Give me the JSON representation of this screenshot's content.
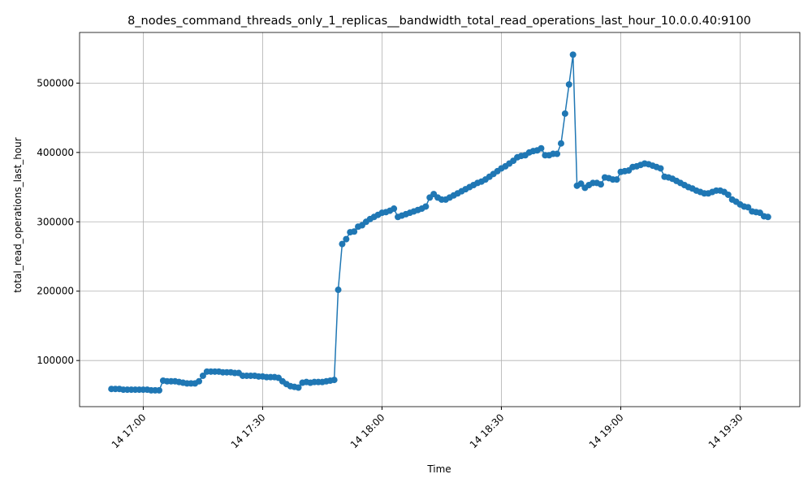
{
  "chart_data": {
    "type": "line",
    "title": "8_nodes_command_threads_only_1_replicas__bandwidth_total_read_operations_last_hour_10.0.0.40:9100",
    "x_label": "Time",
    "y_label": "total_read_operations_last_hour",
    "x": [
      "14 16:52",
      "14 16:53",
      "14 16:54",
      "14 16:55",
      "14 16:56",
      "14 16:57",
      "14 16:58",
      "14 16:59",
      "14 17:00",
      "14 17:01",
      "14 17:02",
      "14 17:03",
      "14 17:04",
      "14 17:05",
      "14 17:06",
      "14 17:07",
      "14 17:08",
      "14 17:09",
      "14 17:10",
      "14 17:11",
      "14 17:12",
      "14 17:13",
      "14 17:14",
      "14 17:15",
      "14 17:16",
      "14 17:17",
      "14 17:18",
      "14 17:19",
      "14 17:20",
      "14 17:21",
      "14 17:22",
      "14 17:23",
      "14 17:24",
      "14 17:25",
      "14 17:26",
      "14 17:27",
      "14 17:28",
      "14 17:29",
      "14 17:30",
      "14 17:31",
      "14 17:32",
      "14 17:33",
      "14 17:34",
      "14 17:35",
      "14 17:36",
      "14 17:37",
      "14 17:38",
      "14 17:39",
      "14 17:40",
      "14 17:41",
      "14 17:42",
      "14 17:43",
      "14 17:44",
      "14 17:45",
      "14 17:46",
      "14 17:47",
      "14 17:48",
      "14 17:49",
      "14 17:50",
      "14 17:51",
      "14 17:52",
      "14 17:53",
      "14 17:54",
      "14 17:55",
      "14 17:56",
      "14 17:57",
      "14 17:58",
      "14 17:59",
      "14 18:00",
      "14 18:01",
      "14 18:02",
      "14 18:03",
      "14 18:04",
      "14 18:05",
      "14 18:06",
      "14 18:07",
      "14 18:08",
      "14 18:09",
      "14 18:10",
      "14 18:11",
      "14 18:12",
      "14 18:13",
      "14 18:14",
      "14 18:15",
      "14 18:16",
      "14 18:17",
      "14 18:18",
      "14 18:19",
      "14 18:20",
      "14 18:21",
      "14 18:22",
      "14 18:23",
      "14 18:24",
      "14 18:25",
      "14 18:26",
      "14 18:27",
      "14 18:28",
      "14 18:29",
      "14 18:30",
      "14 18:31",
      "14 18:32",
      "14 18:33",
      "14 18:34",
      "14 18:35",
      "14 18:36",
      "14 18:37",
      "14 18:38",
      "14 18:39",
      "14 18:40",
      "14 18:41",
      "14 18:42",
      "14 18:43",
      "14 18:44",
      "14 18:45",
      "14 18:46",
      "14 18:47",
      "14 18:48",
      "14 18:49",
      "14 18:50",
      "14 18:51",
      "14 18:52",
      "14 18:53",
      "14 18:54",
      "14 18:55",
      "14 18:56",
      "14 18:57",
      "14 18:58",
      "14 18:59",
      "14 19:00",
      "14 19:01",
      "14 19:02",
      "14 19:03",
      "14 19:04",
      "14 19:05",
      "14 19:06",
      "14 19:07",
      "14 19:08",
      "14 19:09",
      "14 19:10",
      "14 19:11",
      "14 19:12",
      "14 19:13",
      "14 19:14",
      "14 19:15",
      "14 19:16",
      "14 19:17",
      "14 19:18",
      "14 19:19",
      "14 19:20",
      "14 19:21",
      "14 19:22",
      "14 19:23",
      "14 19:24",
      "14 19:25",
      "14 19:26",
      "14 19:27",
      "14 19:28",
      "14 19:29",
      "14 19:30",
      "14 19:31",
      "14 19:32",
      "14 19:33",
      "14 19:34",
      "14 19:35",
      "14 19:36",
      "14 19:37"
    ],
    "series": [
      {
        "color": "#1f77b4",
        "values": [
          59000,
          59000,
          59000,
          58000,
          58000,
          58000,
          58000,
          58000,
          58000,
          58000,
          57000,
          57000,
          57000,
          71000,
          70000,
          70000,
          70000,
          69000,
          68000,
          67000,
          67000,
          67000,
          70000,
          78000,
          84000,
          84000,
          84000,
          84000,
          83000,
          83000,
          83000,
          82000,
          82000,
          78000,
          78000,
          78000,
          78000,
          77000,
          77000,
          76000,
          76000,
          76000,
          75000,
          70000,
          66000,
          63000,
          62000,
          61000,
          68000,
          69000,
          68000,
          69000,
          69000,
          69000,
          70000,
          71000,
          72000,
          202000,
          268000,
          275000,
          285000,
          286000,
          293000,
          295000,
          300000,
          304000,
          307000,
          310000,
          313000,
          314000,
          316000,
          319000,
          307000,
          309000,
          311000,
          313000,
          315000,
          317000,
          319000,
          322000,
          335000,
          340000,
          335000,
          332000,
          332000,
          335000,
          338000,
          341000,
          344000,
          347000,
          350000,
          353000,
          356000,
          358000,
          361000,
          365000,
          369000,
          373000,
          377000,
          380000,
          384000,
          388000,
          393000,
          395000,
          396000,
          400000,
          402000,
          403000,
          406000,
          396000,
          396000,
          398000,
          398000,
          413000,
          456000,
          498000,
          541000,
          352000,
          355000,
          349000,
          353000,
          356000,
          356000,
          354000,
          364000,
          363000,
          361000,
          361000,
          372000,
          373000,
          374000,
          379000,
          380000,
          382000,
          384000,
          383000,
          381000,
          379000,
          377000,
          365000,
          364000,
          362000,
          359000,
          356000,
          353000,
          350000,
          348000,
          345000,
          343000,
          341000,
          341000,
          343000,
          345000,
          345000,
          343000,
          339000,
          332000,
          329000,
          325000,
          322000,
          321000,
          315000,
          314000,
          313000,
          308000,
          307000
        ]
      }
    ],
    "xlim": [
      "14 16:44",
      "14 19:45"
    ],
    "xticks": [
      "14 17:00",
      "14 17:30",
      "14 18:00",
      "14 18:30",
      "14 19:00",
      "14 19:30"
    ],
    "ylim": [
      33500,
      573000
    ],
    "yticks": [
      100000,
      200000,
      300000,
      400000,
      500000
    ],
    "grid": true
  }
}
